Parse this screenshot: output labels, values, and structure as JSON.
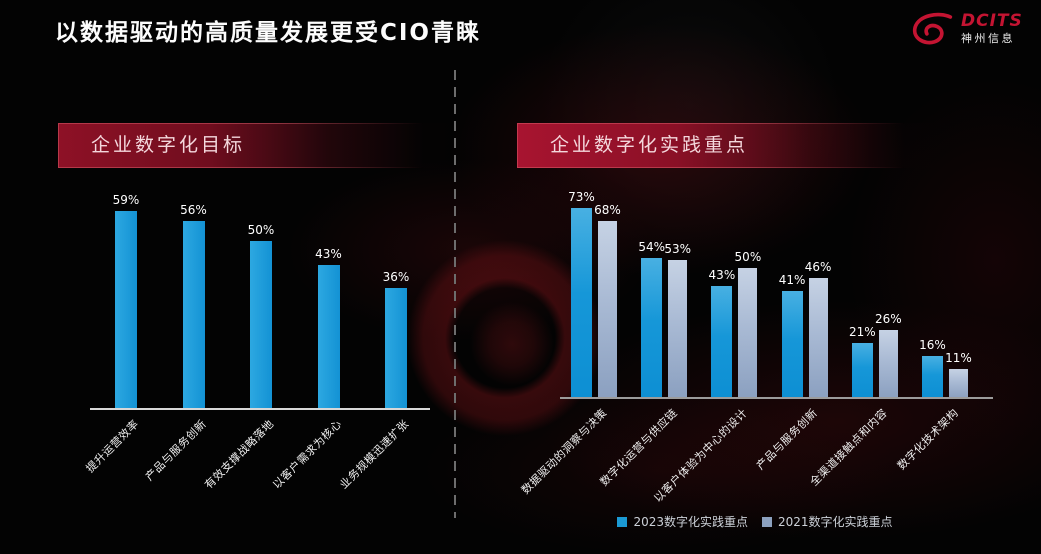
{
  "title": "以数据驱动的高质量发展更受CIO青睐",
  "logo": {
    "brand": "DCITS",
    "company": "神州信息",
    "color": "#c41432"
  },
  "chart_data": [
    {
      "type": "bar",
      "title": "企业数字化目标",
      "categories": [
        "提升运营效率",
        "产品与服务创新",
        "有效支撑战略落地",
        "以客户需求为核心",
        "业务规模迅速扩张"
      ],
      "values": [
        59,
        56,
        50,
        43,
        36
      ],
      "unit": "%",
      "bar_color": "#1c9bd7",
      "ylim": [
        0,
        60
      ],
      "grid": false,
      "data_labels": true
    },
    {
      "type": "bar",
      "title": "企业数字化实践重点",
      "categories": [
        "数据驱动的洞察与决策",
        "数字化运营与供应链",
        "以客户体验为中心的设计",
        "产品与服务创新",
        "全渠道接触点和内容",
        "数字化技术架构"
      ],
      "series": [
        {
          "name": "2023数字化实践重点",
          "values": [
            73,
            54,
            43,
            41,
            21,
            16
          ],
          "color": "#1b9ad4"
        },
        {
          "name": "2021数字化实践重点",
          "values": [
            68,
            53,
            50,
            46,
            26,
            11
          ],
          "color": "#8ca1bf"
        }
      ],
      "unit": "%",
      "ylim": [
        0,
        80
      ],
      "grid": false,
      "data_labels": true,
      "legend_position": "bottom"
    }
  ]
}
